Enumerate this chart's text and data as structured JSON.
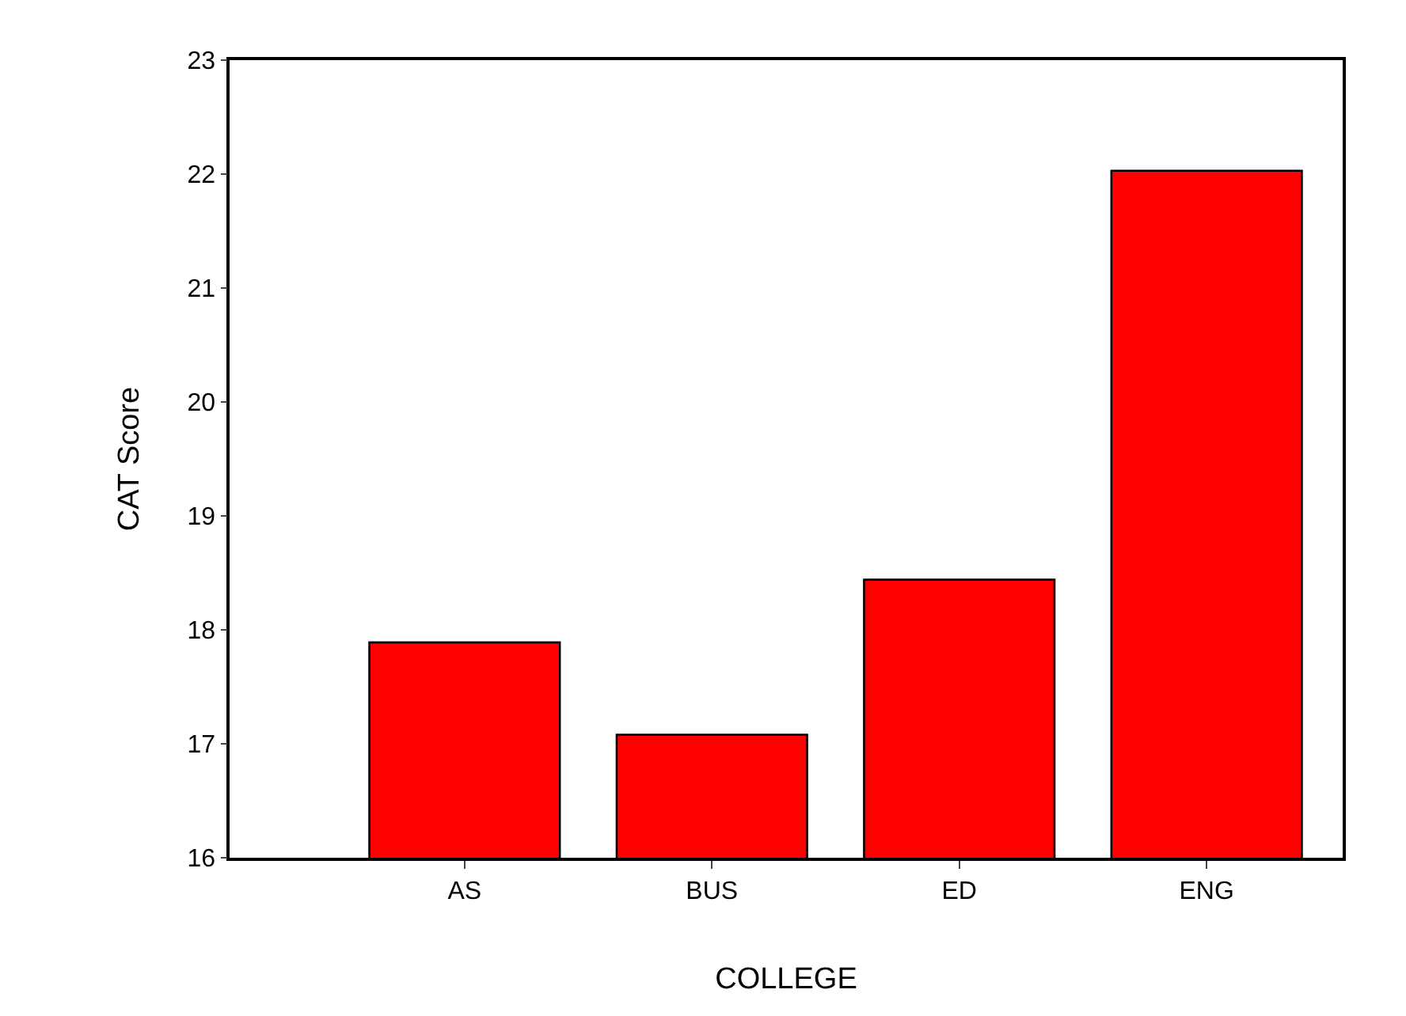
{
  "chart_data": {
    "type": "bar",
    "xlabel": "COLLEGE",
    "ylabel": "CAT Score",
    "categories": [
      "AS",
      "BUS",
      "ED",
      "ENG"
    ],
    "values": [
      17.89,
      17.08,
      18.44,
      22.03
    ],
    "color": "#ff0000",
    "ylim": [
      16,
      23
    ],
    "yticks": [
      16,
      17,
      18,
      19,
      20,
      21,
      22,
      23
    ]
  }
}
